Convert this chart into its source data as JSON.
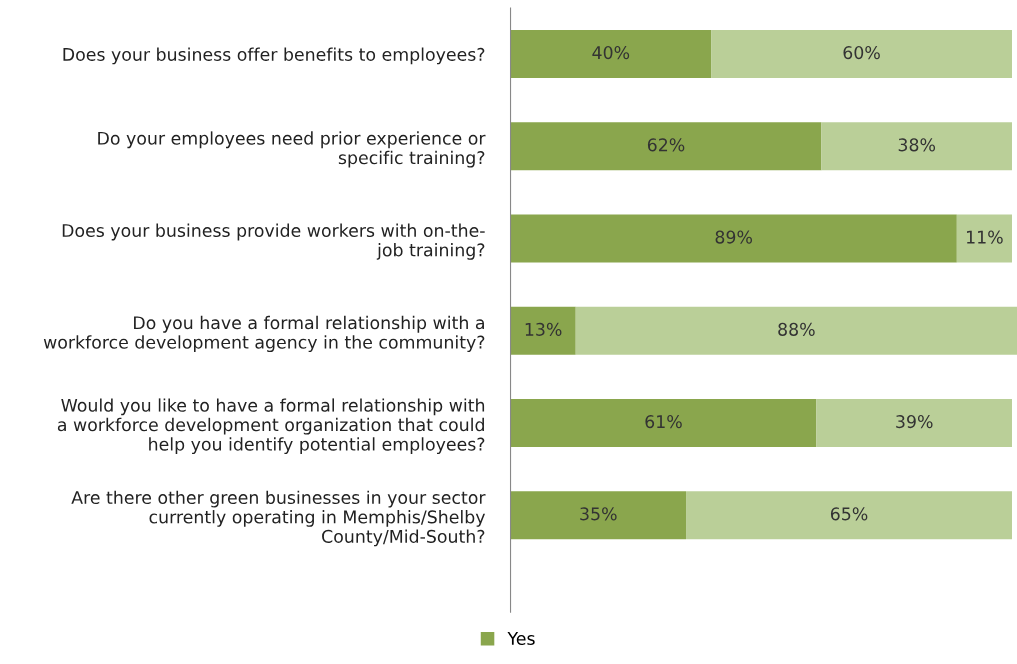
{
  "chart_data": {
    "type": "bar",
    "orientation": "horizontal",
    "stacked": true,
    "data_labels": true,
    "legend": "bottom",
    "grid": false,
    "categories": [
      "Does your business offer benefits to employees?",
      "Do your employees need prior experience or\nspecific training?",
      "Does your business provide workers with on-the-\njob training?",
      "Do you have a formal relationship with a\nworkforce development agency in the community?",
      "Would you like to have a formal relationship with\na workforce development organization that could\nhelp you identify potential employees?",
      "Are there other green businesses in your sector\ncurrently operating in Memphis/Shelby\nCounty/Mid-South?"
    ],
    "series": [
      {
        "name": "Yes",
        "color": "#8aa64d",
        "values": [
          40,
          62,
          89,
          13,
          61,
          35
        ],
        "value_labels": [
          "40%",
          "62%",
          "89%",
          "13%",
          "61%",
          "35%"
        ]
      },
      {
        "color": "#bacf98",
        "values": [
          60,
          38,
          11,
          88,
          39,
          65
        ],
        "value_labels": [
          "60%",
          "38%",
          "11%",
          "88%",
          "39%",
          "65%"
        ]
      }
    ]
  }
}
